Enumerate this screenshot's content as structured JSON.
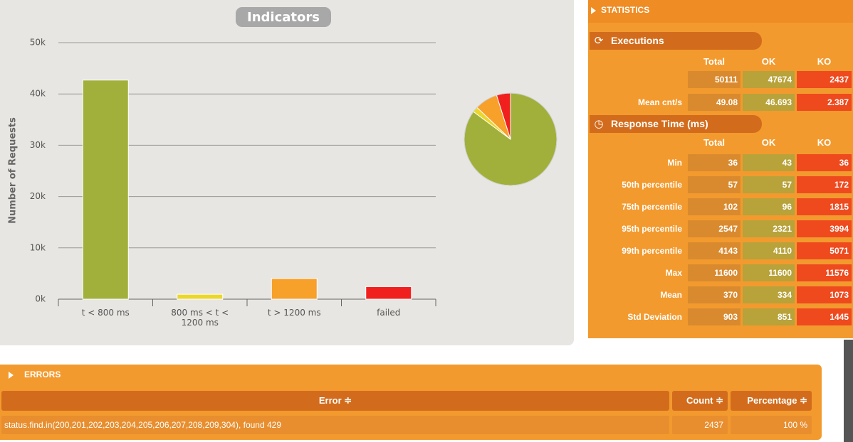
{
  "chart_data": {
    "type": "bar",
    "title": "Indicators",
    "y_label": "Number of Requests",
    "categories": [
      "t < 800 ms",
      "800 ms < t < 1200 ms",
      "t > 1200 ms",
      "failed"
    ],
    "values": [
      42700,
      950,
      4024,
      2437
    ],
    "colors": [
      "#a0b03a",
      "#ebd72b",
      "#f7a02a",
      "#f0201f"
    ],
    "ylim": [
      0,
      50000
    ],
    "yticks": [
      {
        "value": 0,
        "label": "0k"
      },
      {
        "value": 10000,
        "label": "10k"
      },
      {
        "value": 20000,
        "label": "20k"
      },
      {
        "value": 30000,
        "label": "30k"
      },
      {
        "value": 40000,
        "label": "40k"
      },
      {
        "value": 50000,
        "label": "50k"
      }
    ],
    "grid": true
  },
  "statistics": {
    "title": "STATISTICS",
    "executions": {
      "title": "Executions",
      "columns": [
        "Total",
        "OK",
        "KO"
      ],
      "rows": [
        {
          "values": [
            50111,
            47674,
            2437
          ]
        },
        {
          "label": "Mean cnt/s",
          "values": [
            49.08,
            46.693,
            2.387
          ]
        }
      ]
    },
    "response_time": {
      "title": "Response Time (ms)",
      "columns": [
        "Total",
        "OK",
        "KO"
      ],
      "rows": [
        {
          "label": "Min",
          "values": [
            36,
            43,
            36
          ]
        },
        {
          "label": "50th percentile",
          "values": [
            57,
            57,
            172
          ]
        },
        {
          "label": "75th percentile",
          "values": [
            102,
            96,
            1815
          ]
        },
        {
          "label": "95th percentile",
          "values": [
            2547,
            2321,
            3994
          ]
        },
        {
          "label": "99th percentile",
          "values": [
            4143,
            4110,
            5071
          ]
        },
        {
          "label": "Max",
          "values": [
            11600,
            11600,
            11576
          ]
        },
        {
          "label": "Mean",
          "values": [
            370,
            334,
            1073
          ]
        },
        {
          "label": "Std Deviation",
          "values": [
            903,
            851,
            1445
          ]
        }
      ]
    }
  },
  "errors": {
    "title": "ERRORS",
    "columns": [
      "Error ≑",
      "Count ≑",
      "Percentage ≑"
    ],
    "rows": [
      [
        "status.find.in(200,201,202,203,204,205,206,207,208,209,304), found 429",
        2437,
        "100 %"
      ]
    ]
  }
}
